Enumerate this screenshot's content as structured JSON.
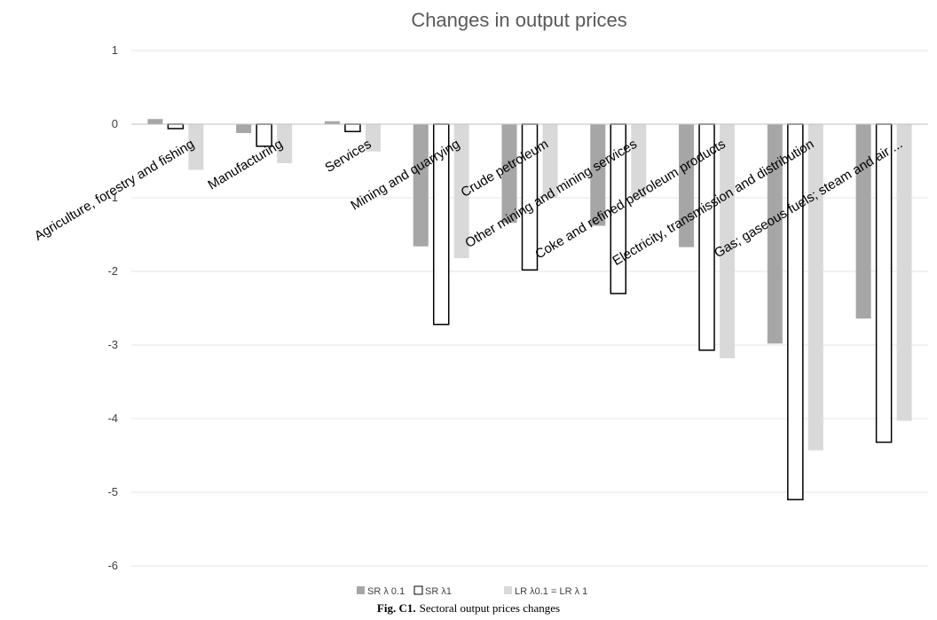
{
  "chart_data": {
    "type": "bar",
    "title": "Changes in output prices",
    "caption_label": "Fig. C1.",
    "caption_text": "Sectoral output prices changes",
    "categories": [
      "Agriculture, forestry and fishing",
      "Manufacturing",
      "Services",
      "Mining and quarrying",
      "Crude petroleum",
      "Other mining and mining services",
      "Coke and refined petroleum products",
      "Electricity, transmission and distribution",
      "Gas; gaseous fuels; steam and air ..."
    ],
    "series": [
      {
        "name": "SR λ 0.1",
        "color": "#a6a6a6",
        "values": [
          0.07,
          -0.12,
          0.04,
          -1.66,
          -1.34,
          -1.38,
          -1.67,
          -2.98,
          -2.64
        ]
      },
      {
        "name": "SR λ1",
        "color": "#ffffff",
        "stroke": "#000000",
        "values": [
          -0.06,
          -0.3,
          -0.1,
          -2.72,
          -1.98,
          -2.3,
          -3.07,
          -5.1,
          -4.32
        ]
      },
      {
        "name": "LR λ0.1 = LR λ 1",
        "color": "#d9d9d9",
        "values": [
          -0.62,
          -0.53,
          -0.37,
          -1.82,
          -1.0,
          -1.0,
          -3.18,
          -4.43,
          -4.03
        ]
      }
    ],
    "ylim": [
      -6,
      1
    ],
    "yticks": [
      1,
      0,
      -1,
      -2,
      -3,
      -4,
      -5,
      -6
    ],
    "grid": true,
    "legend_position": "bottom"
  }
}
